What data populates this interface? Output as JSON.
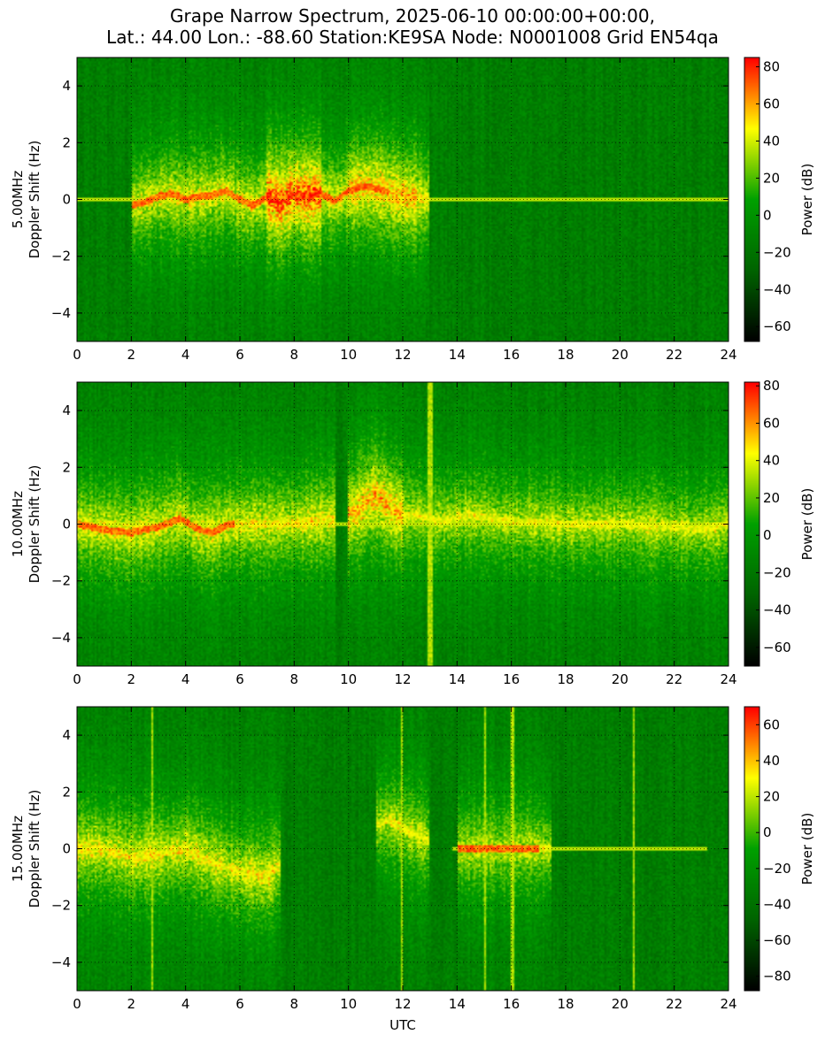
{
  "title_lines": [
    "Grape Narrow Spectrum, 2025-06-10 00:00:00+00:00,",
    "Lat.: 44.00 Lon.: -88.60 Station:KE9SA Node: N0001008 Grid EN54qa"
  ],
  "x_axis_label": "UTC",
  "colormap": [
    "#000000",
    "#006400",
    "#00a000",
    "#ffff00",
    "#ff0000"
  ],
  "chart_data": [
    {
      "type": "heatmap",
      "frequency_label": "5.00MHz",
      "ylabel": "Doppler Shift (Hz)",
      "xlabel": "",
      "xlim": [
        0,
        24
      ],
      "ylim": [
        -5,
        5
      ],
      "x_ticks": [
        0,
        2,
        4,
        6,
        8,
        10,
        12,
        14,
        16,
        18,
        20,
        22,
        24
      ],
      "y_ticks": [
        -4,
        -2,
        0,
        2,
        4
      ],
      "grid": true,
      "colorbar": {
        "label": "Power (dB)",
        "range": [
          -68,
          85
        ],
        "ticks": [
          -60,
          -40,
          -20,
          0,
          20,
          40,
          60,
          80
        ]
      },
      "activity_bands": [
        {
          "start": 2.0,
          "end": 13.0,
          "intensity": 0.45
        },
        {
          "start": 7.0,
          "end": 9.0,
          "intensity": 0.7
        },
        {
          "start": 10.0,
          "end": 12.5,
          "intensity": 0.55
        }
      ],
      "carrier": {
        "start": 0.0,
        "end": 24.0,
        "center": 0.0
      },
      "strong_carrier": {
        "start": 2.0,
        "end": 11.5
      },
      "trace": [
        [
          0,
          0.0
        ],
        [
          1,
          -0.05
        ],
        [
          2,
          -0.2
        ],
        [
          2.5,
          -0.1
        ],
        [
          3,
          0.1
        ],
        [
          3.5,
          0.2
        ],
        [
          4,
          0.0
        ],
        [
          4.5,
          0.1
        ],
        [
          5,
          0.15
        ],
        [
          5.5,
          0.3
        ],
        [
          6,
          0.0
        ],
        [
          6.5,
          -0.2
        ],
        [
          7,
          0.1
        ],
        [
          7.5,
          -0.1
        ],
        [
          8,
          0.2
        ],
        [
          8.5,
          0.1
        ],
        [
          9,
          0.2
        ],
        [
          9.5,
          -0.05
        ],
        [
          10,
          0.3
        ],
        [
          10.5,
          0.45
        ],
        [
          11,
          0.4
        ],
        [
          11.5,
          0.25
        ],
        [
          12,
          0.1
        ],
        [
          13,
          0.0
        ],
        [
          24,
          0.0
        ]
      ]
    },
    {
      "type": "heatmap",
      "frequency_label": "10.00MHz",
      "ylabel": "Doppler Shift (Hz)",
      "xlabel": "",
      "xlim": [
        0,
        24
      ],
      "ylim": [
        -5,
        5
      ],
      "x_ticks": [
        0,
        2,
        4,
        6,
        8,
        10,
        12,
        14,
        16,
        18,
        20,
        22,
        24
      ],
      "y_ticks": [
        -4,
        -2,
        0,
        2,
        4
      ],
      "grid": true,
      "colorbar": {
        "label": "Power (dB)",
        "range": [
          -70,
          82
        ],
        "ticks": [
          -60,
          -40,
          -20,
          0,
          20,
          40,
          60,
          80
        ]
      },
      "activity_bands": [
        {
          "start": 0.0,
          "end": 9.5,
          "intensity": 0.45
        },
        {
          "start": 10.0,
          "end": 12.0,
          "intensity": 0.55
        },
        {
          "start": 12.0,
          "end": 24.0,
          "intensity": 0.4
        }
      ],
      "vertical_lines": [
        12.95,
        13.05
      ],
      "carrier": {
        "start": 0.0,
        "end": 24.0,
        "center": 0.0
      },
      "strong_carrier": {
        "start": 0.0,
        "end": 5.8
      },
      "trace": [
        [
          0,
          0.0
        ],
        [
          1,
          -0.2
        ],
        [
          2,
          -0.3
        ],
        [
          3,
          -0.1
        ],
        [
          3.8,
          0.2
        ],
        [
          4.5,
          -0.2
        ],
        [
          5,
          -0.3
        ],
        [
          5.6,
          0.0
        ],
        [
          6,
          0.0
        ],
        [
          8,
          0.0
        ],
        [
          10,
          0.3
        ],
        [
          11,
          1.0
        ],
        [
          11.5,
          0.6
        ],
        [
          12,
          0.3
        ],
        [
          12.5,
          0.3
        ],
        [
          13.5,
          0.1
        ],
        [
          14.5,
          0.3
        ],
        [
          16,
          0.1
        ],
        [
          18,
          0.0
        ],
        [
          20,
          0.0
        ],
        [
          22,
          -0.1
        ],
        [
          23,
          -0.2
        ],
        [
          24,
          0.0
        ]
      ]
    },
    {
      "type": "heatmap",
      "frequency_label": "15.00MHz",
      "ylabel": "Doppler Shift (Hz)",
      "xlabel": "UTC",
      "xlim": [
        0,
        24
      ],
      "ylim": [
        -5,
        5
      ],
      "x_ticks": [
        0,
        2,
        4,
        6,
        8,
        10,
        12,
        14,
        16,
        18,
        20,
        22,
        24
      ],
      "y_ticks": [
        -4,
        -2,
        0,
        2,
        4
      ],
      "grid": true,
      "colorbar": {
        "label": "Power (dB)",
        "range": [
          -88,
          70
        ],
        "ticks": [
          -80,
          -60,
          -40,
          -20,
          0,
          20,
          40,
          60
        ]
      },
      "activity_bands": [
        {
          "start": 0.0,
          "end": 7.5,
          "intensity": 0.45
        },
        {
          "start": 11.0,
          "end": 13.0,
          "intensity": 0.4
        },
        {
          "start": 14.0,
          "end": 17.5,
          "intensity": 0.4
        }
      ],
      "vertical_lines": [
        2.75,
        11.95,
        15.05,
        16.05,
        20.5
      ],
      "carrier": {
        "start": 13.8,
        "end": 23.2,
        "center": 0.0
      },
      "strong_carrier": {
        "start": 14.0,
        "end": 17.0
      },
      "trace": [
        [
          0,
          0.0
        ],
        [
          1,
          0.0
        ],
        [
          2,
          -0.3
        ],
        [
          3,
          -0.2
        ],
        [
          4,
          0.0
        ],
        [
          5,
          -0.5
        ],
        [
          6,
          -0.8
        ],
        [
          7,
          -1.0
        ],
        [
          8,
          0.0
        ],
        [
          11.5,
          1.0
        ],
        [
          12.5,
          0.5
        ],
        [
          13.5,
          0.1
        ],
        [
          14,
          0.0
        ],
        [
          16,
          0.0
        ],
        [
          20,
          0.0
        ],
        [
          23,
          0.0
        ]
      ]
    }
  ]
}
